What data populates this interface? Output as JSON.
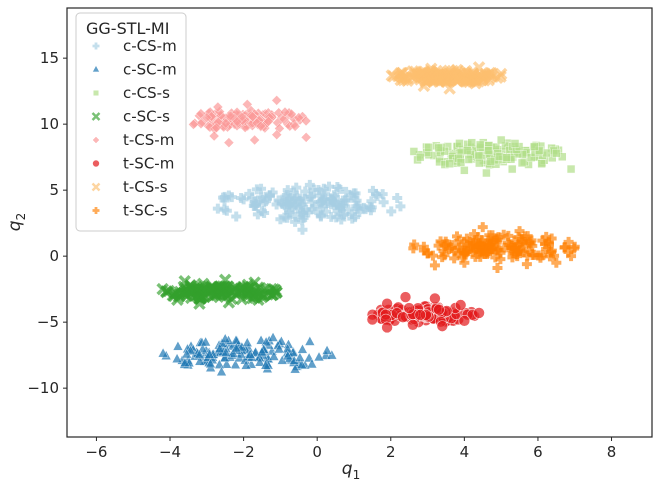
{
  "chart_data": {
    "type": "scatter",
    "xlabel": "q",
    "xlabel_sub": "1",
    "ylabel": "q",
    "ylabel_sub": "2",
    "xlim": [
      -6.8,
      9.1
    ],
    "ylim": [
      -13.7,
      18.8
    ],
    "xticks": [
      -6,
      -4,
      -2,
      0,
      2,
      4,
      6,
      8
    ],
    "xtick_labels": [
      "−6",
      "−4",
      "−2",
      "0",
      "2",
      "4",
      "6",
      "8"
    ],
    "yticks": [
      -10,
      -5,
      0,
      5,
      10,
      15
    ],
    "ytick_labels": [
      "−10",
      "−5",
      "0",
      "5",
      "10",
      "15"
    ],
    "grid": false,
    "legend": {
      "title": "GG-STL-MI",
      "placement": "top-left"
    },
    "series": [
      {
        "name": "c-CS-m",
        "color": "#a6cee3",
        "marker": "plus",
        "cluster": {
          "cx": -0.2,
          "cy": 4.0,
          "sx": 2.5,
          "sy": 1.3,
          "n": 130
        },
        "points": [
          [
            -2.7,
            3.6
          ],
          [
            -2.2,
            3.0
          ],
          [
            -1.5,
            3.4
          ],
          [
            -1.0,
            2.8
          ],
          [
            -0.6,
            2.6
          ],
          [
            0.1,
            3.0
          ],
          [
            0.7,
            3.1
          ],
          [
            1.1,
            3.6
          ],
          [
            1.6,
            4.7
          ],
          [
            0.6,
            5.1
          ],
          [
            -0.2,
            5.4
          ],
          [
            -0.8,
            5.0
          ],
          [
            -1.4,
            4.5
          ],
          [
            -2.0,
            4.3
          ],
          [
            -2.4,
            4.6
          ],
          [
            -0.4,
            2.0
          ],
          [
            0.8,
            4.2
          ],
          [
            0.1,
            4.1
          ],
          [
            -0.7,
            4.0
          ],
          [
            -1.7,
            3.8
          ]
        ]
      },
      {
        "name": "c-SC-m",
        "color": "#1f78b4",
        "marker": "triangle",
        "cluster": {
          "cx": -1.9,
          "cy": -7.5,
          "sx": 2.3,
          "sy": 1.1,
          "n": 130
        },
        "points": [
          [
            -3.2,
            -7.5
          ],
          [
            -2.9,
            -8.2
          ],
          [
            -2.6,
            -8.8
          ],
          [
            -2.2,
            -7.0
          ],
          [
            -1.5,
            -7.3
          ],
          [
            -0.8,
            -7.6
          ],
          [
            -0.4,
            -7.1
          ],
          [
            -0.2,
            -6.5
          ],
          [
            -0.6,
            -8.6
          ],
          [
            -1.9,
            -6.6
          ],
          [
            -2.5,
            -6.3
          ],
          [
            -1.2,
            -6.2
          ]
        ]
      },
      {
        "name": "c-CS-s",
        "color": "#b2df8a",
        "marker": "square",
        "cluster": {
          "cx": 4.6,
          "cy": 7.7,
          "sx": 2.1,
          "sy": 0.9,
          "n": 140
        },
        "points": [
          [
            2.8,
            7.5
          ],
          [
            3.3,
            8.2
          ],
          [
            4.0,
            6.5
          ],
          [
            4.6,
            6.3
          ],
          [
            5.3,
            6.6
          ],
          [
            6.1,
            7.0
          ],
          [
            6.9,
            6.6
          ],
          [
            6.5,
            7.8
          ],
          [
            5.9,
            8.3
          ],
          [
            5.0,
            8.8
          ],
          [
            4.2,
            8.6
          ],
          [
            3.6,
            7.0
          ]
        ]
      },
      {
        "name": "c-SC-s",
        "color": "#33a02c",
        "marker": "x",
        "cluster": {
          "cx": -2.6,
          "cy": -2.7,
          "sx": 1.5,
          "sy": 0.6,
          "n": 140
        },
        "points": [
          [
            -4.2,
            -2.5
          ],
          [
            -3.8,
            -3.3
          ],
          [
            -3.2,
            -3.6
          ],
          [
            -2.4,
            -3.5
          ],
          [
            -1.6,
            -3.3
          ],
          [
            -1.3,
            -2.7
          ],
          [
            -1.7,
            -2.0
          ],
          [
            -2.5,
            -1.8
          ],
          [
            -3.1,
            -2.1
          ],
          [
            -3.6,
            -1.9
          ]
        ]
      },
      {
        "name": "t-CS-m",
        "color": "#fb9a99",
        "marker": "diamond",
        "cluster": {
          "cx": -1.9,
          "cy": 10.3,
          "sx": 1.6,
          "sy": 0.8,
          "n": 140
        },
        "points": [
          [
            -2.8,
            9.1
          ],
          [
            -2.4,
            8.6
          ],
          [
            -1.7,
            8.8
          ],
          [
            -1.1,
            9.2
          ],
          [
            -0.3,
            9.0
          ],
          [
            -0.5,
            10.5
          ],
          [
            -1.1,
            11.8
          ],
          [
            -1.9,
            11.5
          ],
          [
            -2.7,
            11.3
          ],
          [
            -3.0,
            10.5
          ]
        ]
      },
      {
        "name": "t-SC-m",
        "color": "#e31a1c",
        "marker": "circle",
        "cluster": {
          "cx": 2.9,
          "cy": -4.4,
          "sx": 1.4,
          "sy": 0.6,
          "n": 140
        },
        "points": [
          [
            1.5,
            -4.8
          ],
          [
            1.9,
            -5.4
          ],
          [
            2.6,
            -5.2
          ],
          [
            3.4,
            -5.3
          ],
          [
            4.0,
            -4.9
          ],
          [
            4.4,
            -4.3
          ],
          [
            3.9,
            -3.7
          ],
          [
            3.2,
            -3.2
          ],
          [
            2.4,
            -3.1
          ],
          [
            1.9,
            -3.6
          ]
        ]
      },
      {
        "name": "t-CS-s",
        "color": "#fdbf6f",
        "marker": "x",
        "cluster": {
          "cx": 3.5,
          "cy": 13.6,
          "sx": 1.5,
          "sy": 0.45,
          "n": 140
        },
        "points": [
          [
            2.4,
            13.6
          ],
          [
            2.9,
            12.9
          ],
          [
            3.6,
            12.7
          ],
          [
            4.3,
            13.1
          ],
          [
            5.0,
            13.8
          ],
          [
            4.4,
            14.3
          ],
          [
            3.8,
            14.1
          ],
          [
            3.1,
            14.2
          ],
          [
            2.6,
            14.0
          ]
        ]
      },
      {
        "name": "t-SC-s",
        "color": "#ff7f00",
        "marker": "plus",
        "cluster": {
          "cx": 4.8,
          "cy": 0.7,
          "sx": 2.2,
          "sy": 1.0,
          "n": 140
        },
        "points": [
          [
            3.0,
            0.2
          ],
          [
            3.2,
            -0.7
          ],
          [
            4.0,
            -0.5
          ],
          [
            4.9,
            -0.9
          ],
          [
            5.7,
            -0.6
          ],
          [
            6.5,
            -0.5
          ],
          [
            6.9,
            0.0
          ],
          [
            6.3,
            0.9
          ],
          [
            5.5,
            1.9
          ],
          [
            4.5,
            2.2
          ],
          [
            3.8,
            1.5
          ],
          [
            3.3,
            0.8
          ]
        ]
      }
    ]
  }
}
